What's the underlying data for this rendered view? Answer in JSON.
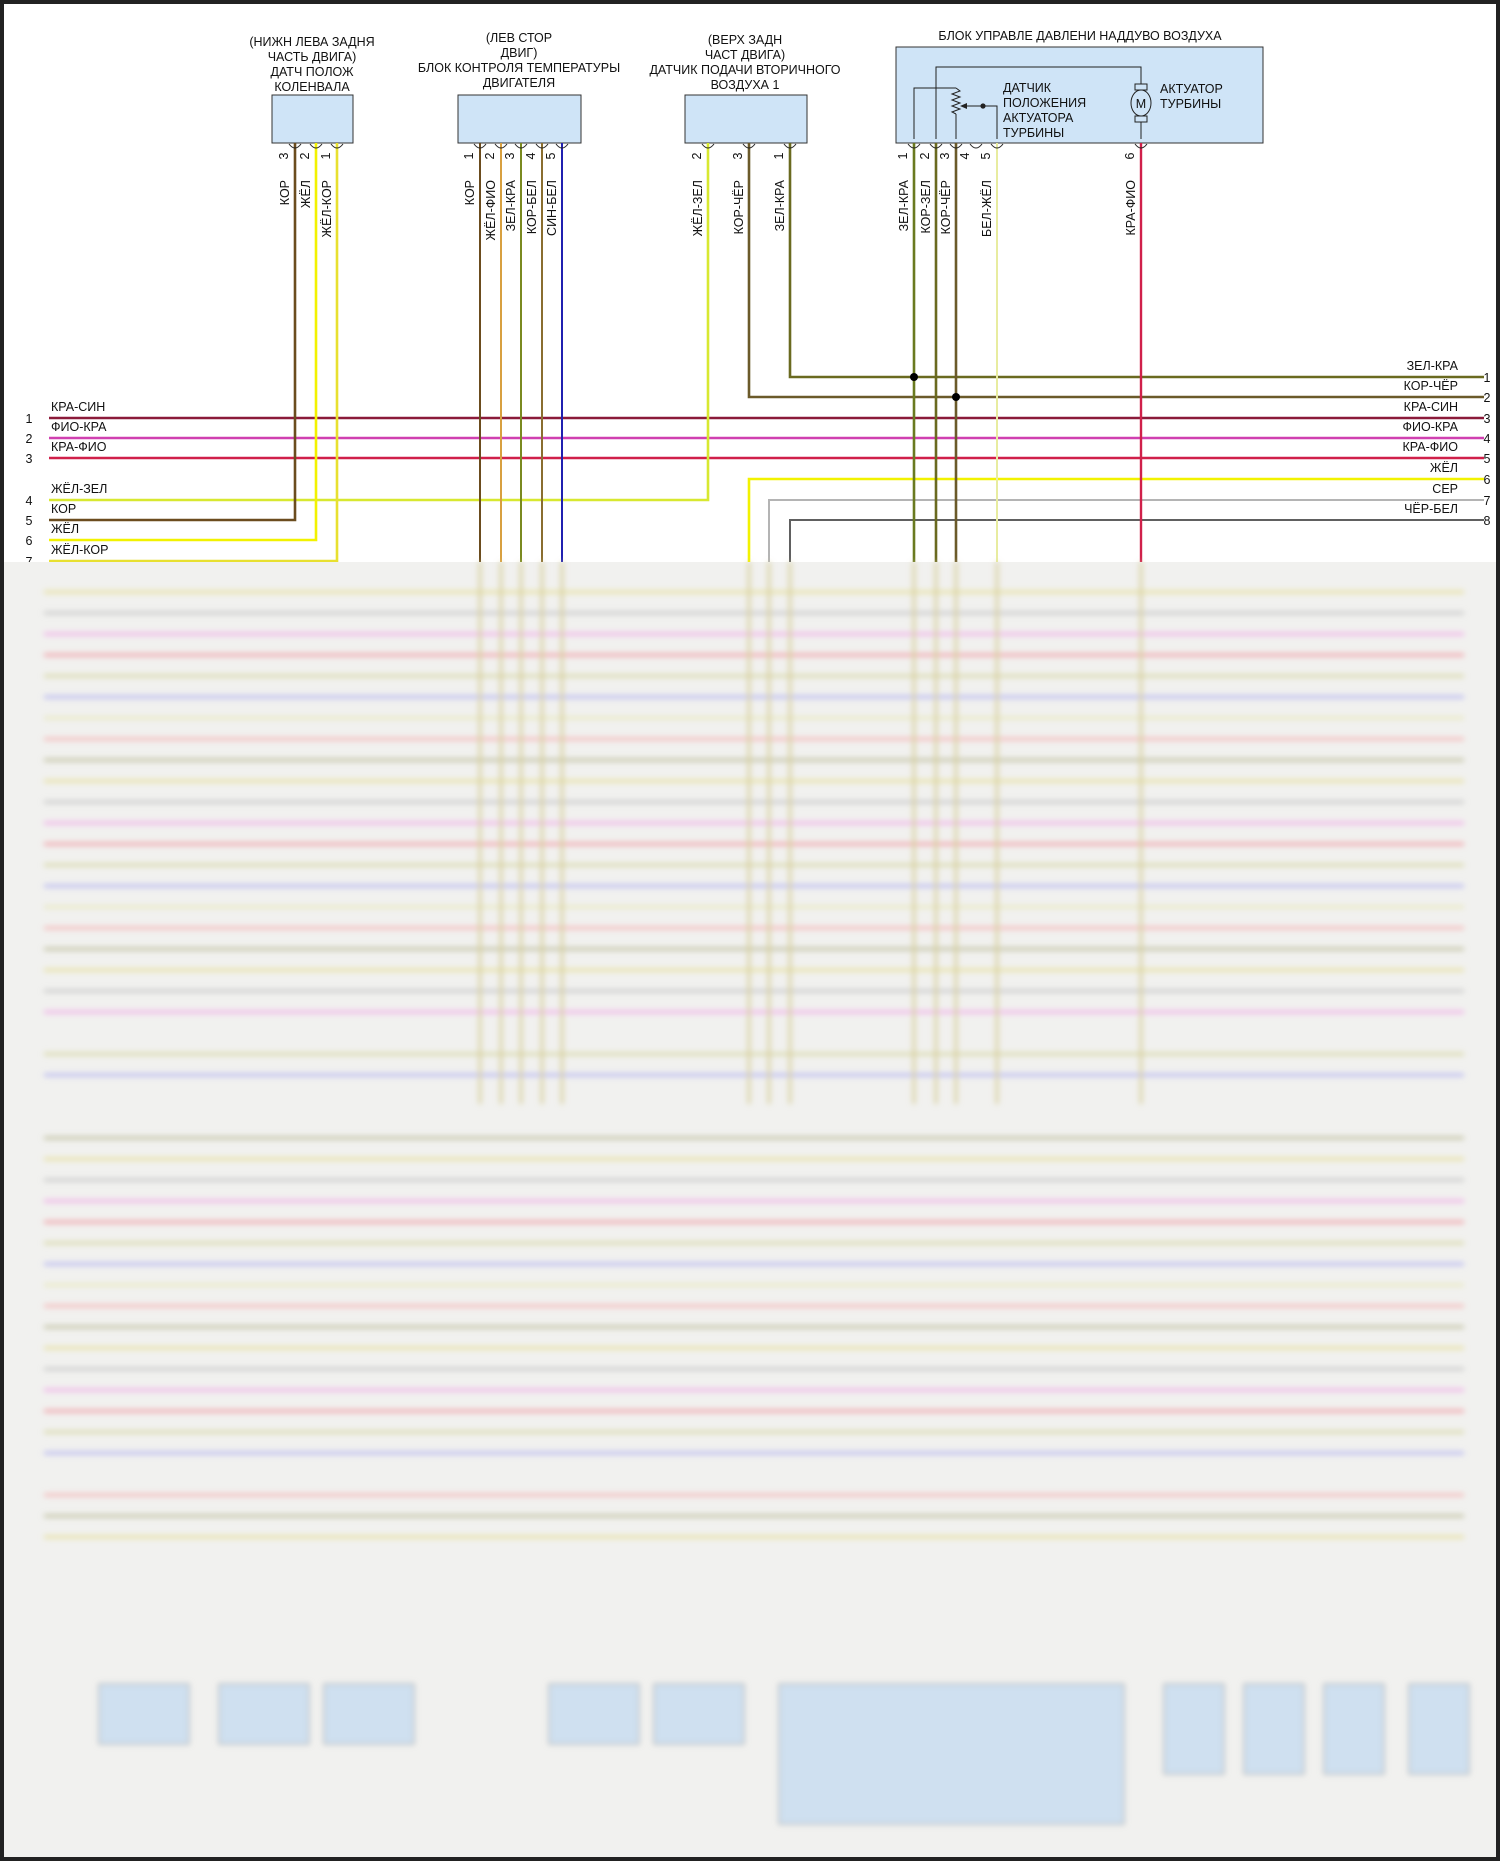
{
  "connectors": [
    {
      "title": [
        "(НИЖН ЛЕВА ЗАДНЯ",
        "ЧАСТЬ ДВИГА)",
        "ДАТЧ ПОЛОЖ",
        "КОЛЕНВАЛА"
      ],
      "pins": [
        {
          "num": "3",
          "wire": "КОР",
          "color": "#6b4c1e"
        },
        {
          "num": "2",
          "wire": "ЖЁЛ",
          "color": "#f2f200"
        },
        {
          "num": "1",
          "wire": "ЖЁЛ-КОР",
          "color": "#e8e030"
        }
      ]
    },
    {
      "title": [
        "(ЛЕВ СТОР",
        "ДВИГ)",
        "БЛОК КОНТРОЛЯ ТЕМПЕРАТУРЫ",
        "ДВИГАТЕЛЯ"
      ],
      "pins": [
        {
          "num": "1",
          "wire": "КОР",
          "color": "#6b4c1e"
        },
        {
          "num": "2",
          "wire": "ЖЁЛ-ФИО",
          "color": "#d8a040"
        },
        {
          "num": "3",
          "wire": "ЗЕЛ-КРА",
          "color": "#7a8a20"
        },
        {
          "num": "4",
          "wire": "КОР-БЕЛ",
          "color": "#8a6e30"
        },
        {
          "num": "5",
          "wire": "СИН-БЕЛ",
          "color": "#2020b0"
        }
      ]
    },
    {
      "title": [
        "(ВЕРХ ЗАДН",
        "ЧАСТ ДВИГА)",
        "ДАТЧИК ПОДАЧИ ВТОРИЧНОГО",
        "ВОЗДУХА 1"
      ],
      "pins": [
        {
          "num": "2",
          "wire": "ЖЁЛ-ЗЕЛ",
          "color": "#d8e830"
        },
        {
          "num": "3",
          "wire": "КОР-ЧЁР",
          "color": "#6b5a2a"
        },
        {
          "num": "1",
          "wire": "ЗЕЛ-КРА",
          "color": "#6a6a20"
        }
      ]
    },
    {
      "title": [
        "БЛОК УПРАВЛЕ ДАВЛЕНИ НАДДУВО ВОЗДУХА"
      ],
      "sensor_label": [
        "ДАТЧИК",
        "ПОЛОЖЕНИЯ",
        "АКТУАТОРА",
        "ТУРБИНЫ"
      ],
      "motor_label": [
        "АКТУАТОР",
        "ТУРБИНЫ"
      ],
      "motor_symbol": "M",
      "pins": [
        {
          "num": "1",
          "wire": "ЗЕЛ-КРА",
          "color": "#6a7a20"
        },
        {
          "num": "2",
          "wire": "КОР-ЗЕЛ",
          "color": "#6a6a20"
        },
        {
          "num": "3",
          "wire": "КОР-ЧЁР",
          "color": "#6b5a2a"
        },
        {
          "num": "4",
          "wire": "",
          "color": ""
        },
        {
          "num": "5",
          "wire": "БЕЛ-ЖЁЛ",
          "color": "#e8eca0"
        },
        {
          "num": "6",
          "wire": "КРА-ФИО",
          "color": "#d0204a"
        }
      ]
    }
  ],
  "left_harness": [
    {
      "num": "1",
      "wire": "КРА-СИН",
      "color": "#8b1a3a"
    },
    {
      "num": "2",
      "wire": "ФИО-КРА",
      "color": "#d040b0"
    },
    {
      "num": "3",
      "wire": "КРА-ФИО",
      "color": "#d0204a"
    },
    {
      "num": "4",
      "wire": "ЖЁЛ-ЗЕЛ",
      "color": "#d8e830"
    },
    {
      "num": "5",
      "wire": "КОР",
      "color": "#6b4c1e"
    },
    {
      "num": "6",
      "wire": "ЖЁЛ",
      "color": "#f2f200"
    },
    {
      "num": "7",
      "wire": "ЖЁЛ-КОР",
      "color": "#e8e030"
    }
  ],
  "right_harness": [
    {
      "num": "1",
      "wire": "ЗЕЛ-КРА",
      "color": "#6a6a20"
    },
    {
      "num": "2",
      "wire": "КОР-ЧЁР",
      "color": "#6b5a2a"
    },
    {
      "num": "3",
      "wire": "КРА-СИН",
      "color": "#8b1a3a"
    },
    {
      "num": "4",
      "wire": "ФИО-КРА",
      "color": "#d040b0"
    },
    {
      "num": "5",
      "wire": "КРА-ФИО",
      "color": "#d0204a"
    },
    {
      "num": "6",
      "wire": "ЖЁЛ",
      "color": "#f2f200"
    },
    {
      "num": "7",
      "wire": "СЕР",
      "color": "#b4b4b4"
    },
    {
      "num": "8",
      "wire": "ЧЁР-БЕЛ",
      "color": "#606060"
    }
  ],
  "colors": {
    "box_fill": "#cfe4f7",
    "box_stroke": "#333333",
    "blur_bg": "#f1f1ef"
  }
}
